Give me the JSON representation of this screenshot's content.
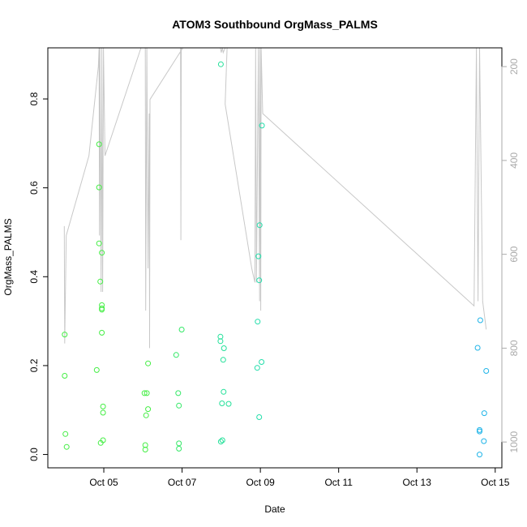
{
  "chart_data": {
    "type": "scatter",
    "title": "ATOM3 Southbound OrgMass_PALMS",
    "xlabel": "Date",
    "ylabel": "OrgMass_PALMS",
    "x_ticks": [
      {
        "label": "Oct 05",
        "value": 5
      },
      {
        "label": "Oct 07",
        "value": 7
      },
      {
        "label": "Oct 09",
        "value": 9
      },
      {
        "label": "Oct 11",
        "value": 11
      },
      {
        "label": "Oct 13",
        "value": 13
      },
      {
        "label": "Oct 15",
        "value": 15
      }
    ],
    "y_ticks": [
      "0.0",
      "0.2",
      "0.4",
      "0.6",
      "0.8"
    ],
    "y2_ticks": [
      "200",
      "400",
      "600",
      "800",
      "1000"
    ],
    "xlim": [
      3.57,
      15.17
    ],
    "ylim": [
      -0.03,
      0.915
    ],
    "y2lim": [
      1055,
      160
    ],
    "grid": false,
    "colors": {
      "green": "#44ee44",
      "teal": "#22ddaa",
      "cyan": "#1fb4e8",
      "secondary_line": "#c8c8c8"
    },
    "points": [
      {
        "x": 4.0,
        "y": 0.27,
        "color": "#44ee44"
      },
      {
        "x": 4.0,
        "y": 0.177,
        "color": "#44ee44"
      },
      {
        "x": 4.02,
        "y": 0.046,
        "color": "#44ee44"
      },
      {
        "x": 4.05,
        "y": 0.017,
        "color": "#44ee44"
      },
      {
        "x": 4.82,
        "y": 0.19,
        "color": "#44ee44"
      },
      {
        "x": 4.88,
        "y": 0.698,
        "color": "#44ee44"
      },
      {
        "x": 4.88,
        "y": 0.601,
        "color": "#44ee44"
      },
      {
        "x": 4.88,
        "y": 0.475,
        "color": "#44ee44"
      },
      {
        "x": 4.91,
        "y": 0.389,
        "color": "#44ee44"
      },
      {
        "x": 4.95,
        "y": 0.454,
        "color": "#44ee44"
      },
      {
        "x": 4.95,
        "y": 0.336,
        "color": "#44ee44"
      },
      {
        "x": 4.95,
        "y": 0.329,
        "color": "#44ee44"
      },
      {
        "x": 4.95,
        "y": 0.326,
        "color": "#44ee44"
      },
      {
        "x": 4.95,
        "y": 0.274,
        "color": "#44ee44"
      },
      {
        "x": 4.98,
        "y": 0.108,
        "color": "#44ee44"
      },
      {
        "x": 4.98,
        "y": 0.094,
        "color": "#44ee44"
      },
      {
        "x": 4.92,
        "y": 0.026,
        "color": "#44ee44"
      },
      {
        "x": 4.98,
        "y": 0.032,
        "color": "#44ee44"
      },
      {
        "x": 6.04,
        "y": 0.138,
        "color": "#44ee44"
      },
      {
        "x": 6.1,
        "y": 0.138,
        "color": "#44ee44"
      },
      {
        "x": 6.13,
        "y": 0.205,
        "color": "#44ee44"
      },
      {
        "x": 6.08,
        "y": 0.088,
        "color": "#44ee44"
      },
      {
        "x": 6.13,
        "y": 0.102,
        "color": "#44ee44"
      },
      {
        "x": 6.06,
        "y": 0.021,
        "color": "#44ee44"
      },
      {
        "x": 6.06,
        "y": 0.011,
        "color": "#44ee44"
      },
      {
        "x": 6.85,
        "y": 0.224,
        "color": "#33e866"
      },
      {
        "x": 6.99,
        "y": 0.281,
        "color": "#33e866"
      },
      {
        "x": 6.9,
        "y": 0.138,
        "color": "#33e866"
      },
      {
        "x": 6.92,
        "y": 0.11,
        "color": "#33e866"
      },
      {
        "x": 6.92,
        "y": 0.025,
        "color": "#33e866"
      },
      {
        "x": 6.92,
        "y": 0.013,
        "color": "#33e866"
      },
      {
        "x": 7.99,
        "y": 0.878,
        "color": "#22e099"
      },
      {
        "x": 7.98,
        "y": 0.265,
        "color": "#22e099"
      },
      {
        "x": 7.98,
        "y": 0.255,
        "color": "#22e099"
      },
      {
        "x": 8.07,
        "y": 0.239,
        "color": "#22e099"
      },
      {
        "x": 8.05,
        "y": 0.213,
        "color": "#22e099"
      },
      {
        "x": 8.06,
        "y": 0.141,
        "color": "#22e099"
      },
      {
        "x": 8.02,
        "y": 0.115,
        "color": "#22e099"
      },
      {
        "x": 8.19,
        "y": 0.114,
        "color": "#22e099"
      },
      {
        "x": 7.99,
        "y": 0.029,
        "color": "#22e099"
      },
      {
        "x": 8.03,
        "y": 0.032,
        "color": "#22e099"
      },
      {
        "x": 9.04,
        "y": 0.74,
        "color": "#22ddaa"
      },
      {
        "x": 8.98,
        "y": 0.516,
        "color": "#22ddaa"
      },
      {
        "x": 8.95,
        "y": 0.446,
        "color": "#22ddaa"
      },
      {
        "x": 8.97,
        "y": 0.392,
        "color": "#22ddaa"
      },
      {
        "x": 8.93,
        "y": 0.299,
        "color": "#22ddaa"
      },
      {
        "x": 9.03,
        "y": 0.208,
        "color": "#22ddaa"
      },
      {
        "x": 8.92,
        "y": 0.195,
        "color": "#22ddaa"
      },
      {
        "x": 8.97,
        "y": 0.084,
        "color": "#22ddaa"
      },
      {
        "x": 14.62,
        "y": 0.302,
        "color": "#1fb4e8"
      },
      {
        "x": 14.55,
        "y": 0.24,
        "color": "#1fb4e8"
      },
      {
        "x": 14.77,
        "y": 0.188,
        "color": "#1fb4e8"
      },
      {
        "x": 14.72,
        "y": 0.093,
        "color": "#1fb4e8"
      },
      {
        "x": 14.6,
        "y": 0.055,
        "color": "#1fb4e8"
      },
      {
        "x": 14.6,
        "y": 0.052,
        "color": "#1fb4e8"
      },
      {
        "x": 14.71,
        "y": 0.03,
        "color": "#1fb4e8"
      },
      {
        "x": 14.6,
        "y": 0.0,
        "color": "#1fb4e8"
      }
    ],
    "secondary_line": [
      {
        "x": 3.99,
        "y2": 540
      },
      {
        "x": 4.0,
        "y2": 790
      },
      {
        "x": 4.04,
        "y2": 560
      },
      {
        "x": 4.62,
        "y2": 390
      },
      {
        "x": 4.86,
        "y2": 200
      },
      {
        "x": 4.88,
        "y2": 160
      },
      {
        "x": 4.89,
        "y2": 560
      },
      {
        "x": 4.9,
        "y2": 160
      },
      {
        "x": 4.93,
        "y2": 680
      },
      {
        "x": 4.95,
        "y2": 160
      },
      {
        "x": 4.97,
        "y2": 680
      },
      {
        "x": 4.99,
        "y2": 160
      },
      {
        "x": 5.03,
        "y2": 390
      },
      {
        "x": 5.95,
        "y2": 160
      },
      {
        "x": 6.06,
        "y2": 160
      },
      {
        "x": 6.07,
        "y2": 720
      },
      {
        "x": 6.1,
        "y2": 160
      },
      {
        "x": 6.13,
        "y2": 630
      },
      {
        "x": 6.16,
        "y2": 300
      },
      {
        "x": 6.17,
        "y2": 800
      },
      {
        "x": 6.18,
        "y2": 270
      },
      {
        "x": 7.02,
        "y2": 160
      },
      {
        "x": 6.96,
        "y2": 160
      },
      {
        "x": 6.97,
        "y2": 570
      },
      {
        "x": 6.98,
        "y2": 160
      },
      {
        "x": 7.95,
        "y2": 160
      },
      {
        "x": 7.98,
        "y2": 160
      },
      {
        "x": 8.0,
        "y2": 170
      },
      {
        "x": 8.03,
        "y2": 160
      },
      {
        "x": 8.05,
        "y2": 170
      },
      {
        "x": 8.1,
        "y2": 160
      },
      {
        "x": 8.15,
        "y2": 160
      },
      {
        "x": 8.1,
        "y2": 280
      },
      {
        "x": 8.78,
        "y2": 630
      },
      {
        "x": 8.86,
        "y2": 660
      },
      {
        "x": 8.88,
        "y2": 160
      },
      {
        "x": 8.9,
        "y2": 660
      },
      {
        "x": 8.95,
        "y2": 160
      },
      {
        "x": 8.98,
        "y2": 700
      },
      {
        "x": 8.99,
        "y2": 160
      },
      {
        "x": 9.01,
        "y2": 720
      },
      {
        "x": 9.02,
        "y2": 160
      },
      {
        "x": 9.06,
        "y2": 300
      },
      {
        "x": 14.46,
        "y2": 710
      },
      {
        "x": 14.52,
        "y2": 160
      },
      {
        "x": 14.56,
        "y2": 700
      },
      {
        "x": 14.6,
        "y2": 160
      },
      {
        "x": 14.68,
        "y2": 700
      },
      {
        "x": 14.77,
        "y2": 760
      }
    ]
  }
}
